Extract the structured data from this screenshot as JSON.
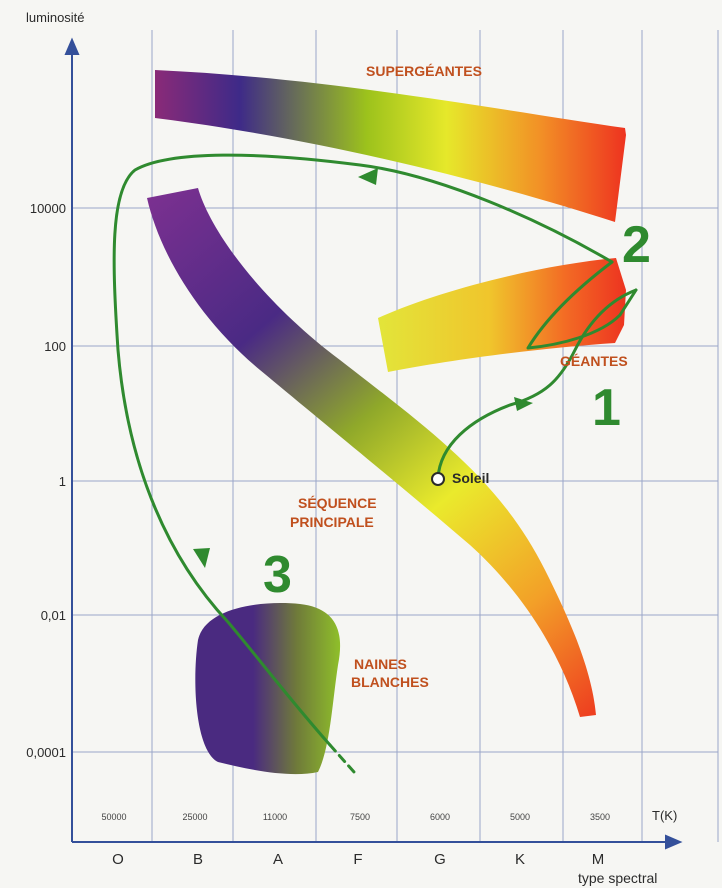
{
  "axes": {
    "y_title": "luminosité",
    "y_ticks": [
      "10000",
      "100",
      "1",
      "0,01",
      "0,0001"
    ],
    "x_temp_title": "T(K)",
    "x_spectral_title": "type spectral",
    "temperatures": [
      "50000",
      "25000",
      "11000",
      "7500",
      "6000",
      "5000",
      "3500"
    ],
    "spectral_types": [
      "O",
      "B",
      "A",
      "F",
      "G",
      "K",
      "M"
    ]
  },
  "regions": {
    "supergiants": "SUPERGÉANTES",
    "giants": "GÉANTES",
    "main_sequence_line1": "SÉQUENCE",
    "main_sequence_line2": "PRINCIPALE",
    "white_dwarfs_line1": "NAINES",
    "white_dwarfs_line2": "BLANCHES"
  },
  "sun_label": "Soleil",
  "stages": [
    "1",
    "2",
    "3"
  ],
  "colors": {
    "grid": "#9aa6c8",
    "axis": "#34509a",
    "track": "#2f8a2f",
    "labels": "#c0501e",
    "purple": "#4a2a80",
    "yellow": "#e8ea2a",
    "red": "#ee3b22"
  }
}
